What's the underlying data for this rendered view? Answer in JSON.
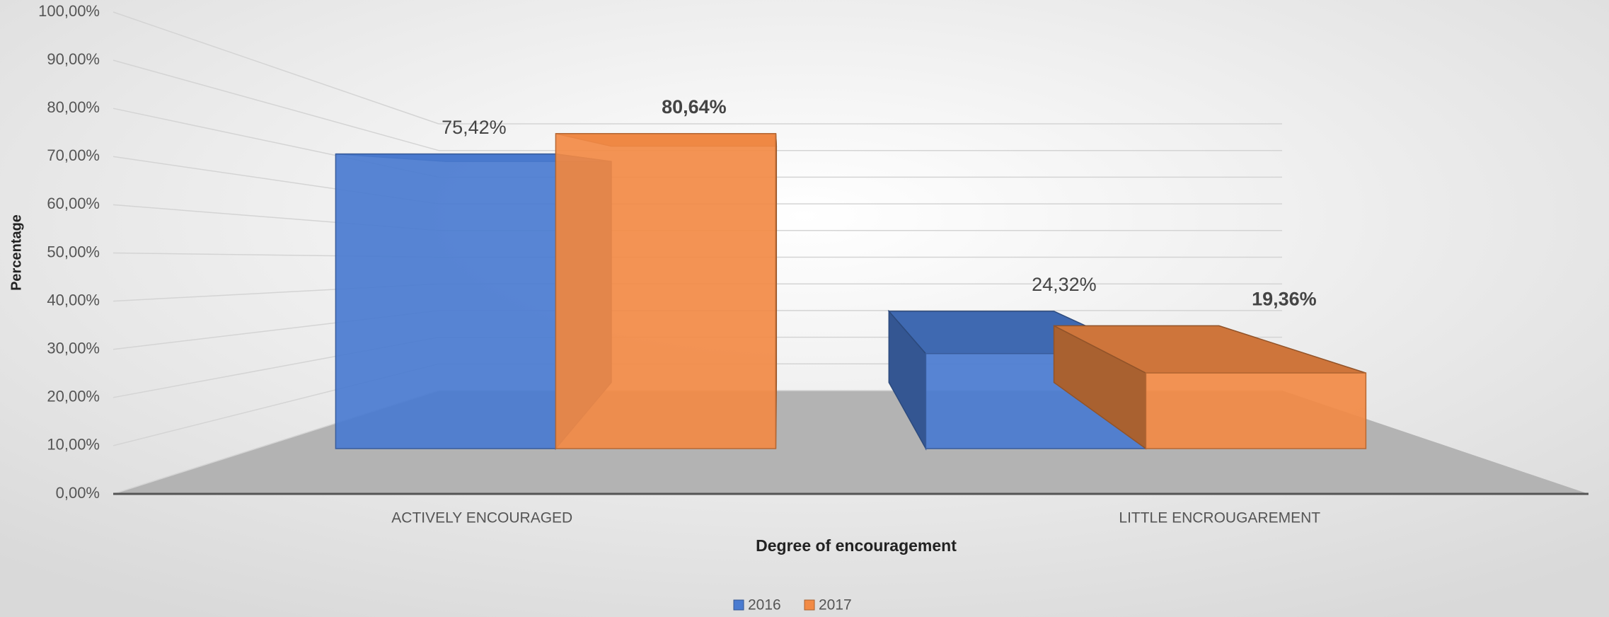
{
  "chart_data": {
    "type": "bar3d",
    "categories": [
      "ACTIVELY ENCOURAGED",
      "LITTLE ENCROUGAREMENT"
    ],
    "series": [
      {
        "name": "2016",
        "color": "#4a7bd0",
        "values": [
          75.42,
          24.32
        ],
        "value_labels": [
          "75,42%",
          "24,32%"
        ]
      },
      {
        "name": "2017",
        "color": "#f28a45",
        "values": [
          80.64,
          19.36
        ],
        "value_labels": [
          "80,64%",
          "19,36%"
        ]
      }
    ],
    "xlabel": "Degree of encouragement",
    "ylabel": "Percentage",
    "ylim": [
      0,
      100
    ],
    "yticks": [
      {
        "value": 0,
        "label": "0,00%"
      },
      {
        "value": 10,
        "label": "10,00%"
      },
      {
        "value": 20,
        "label": "20,00%"
      },
      {
        "value": 30,
        "label": "30,00%"
      },
      {
        "value": 40,
        "label": "40,00%"
      },
      {
        "value": 50,
        "label": "50,00%"
      },
      {
        "value": 60,
        "label": "60,00%"
      },
      {
        "value": 70,
        "label": "70,00%"
      },
      {
        "value": 80,
        "label": "80,00%"
      },
      {
        "value": 90,
        "label": "90,00%"
      },
      {
        "value": 100,
        "label": "100,00%"
      }
    ],
    "grid": true,
    "legend": "bottom"
  }
}
